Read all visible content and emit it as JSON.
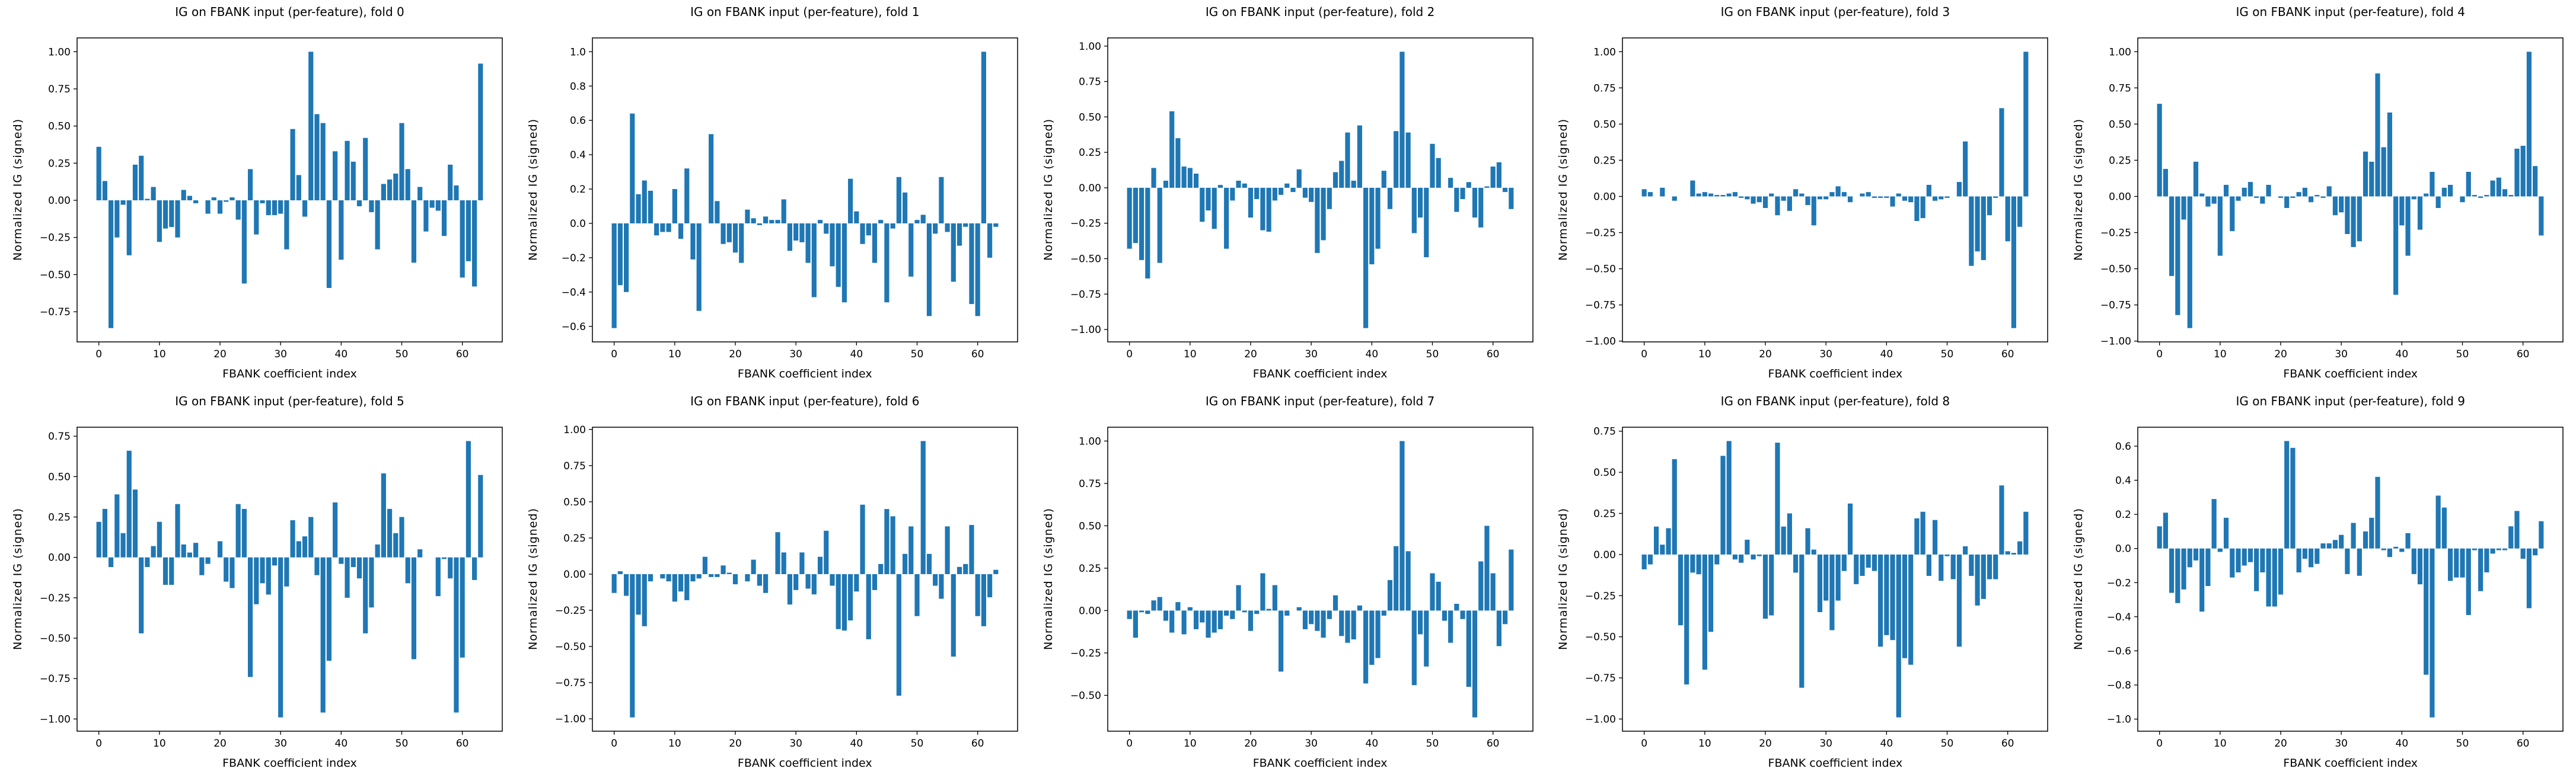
{
  "figure": {
    "bar_color": "#1f77b4",
    "spine_color": "#000000",
    "background_color": "#ffffff",
    "xticks": [
      0,
      10,
      20,
      30,
      40,
      50,
      60
    ]
  },
  "chart_data": [
    {
      "type": "bar",
      "title": "IG on FBANK input (per-feature), fold 0",
      "xlabel": "FBANK coefficient index",
      "ylabel": "Normalized IG (signed)",
      "x_start": 0,
      "yticks": [
        "1.00",
        "0.75",
        "0.50",
        "0.25",
        "0.00",
        "−0.25",
        "−0.50",
        "−0.75"
      ],
      "values": [
        0.36,
        0.13,
        -0.86,
        -0.25,
        -0.03,
        -0.37,
        0.24,
        0.3,
        0.01,
        0.09,
        -0.28,
        -0.19,
        -0.18,
        -0.25,
        0.07,
        0.03,
        -0.02,
        0.0,
        -0.09,
        0.02,
        -0.09,
        -0.01,
        0.02,
        -0.13,
        -0.56,
        0.21,
        -0.23,
        -0.02,
        -0.1,
        -0.1,
        -0.09,
        -0.33,
        0.48,
        0.17,
        -0.11,
        1.0,
        0.58,
        0.52,
        -0.59,
        0.33,
        -0.4,
        0.4,
        0.26,
        -0.04,
        0.42,
        -0.08,
        -0.33,
        0.11,
        0.14,
        0.18,
        0.52,
        0.21,
        -0.42,
        0.09,
        -0.21,
        -0.05,
        -0.07,
        -0.24,
        0.24,
        0.1,
        -0.52,
        -0.41,
        -0.58,
        0.92
      ]
    },
    {
      "type": "bar",
      "title": "IG on FBANK input (per-feature), fold 1",
      "xlabel": "FBANK coefficient index",
      "ylabel": "Normalized IG (signed)",
      "x_start": 0,
      "yticks": [
        "1.0",
        "0.8",
        "0.6",
        "0.4",
        "0.2",
        "0.0",
        "−0.2",
        "−0.4",
        "−0.6"
      ],
      "values": [
        -0.61,
        -0.36,
        -0.4,
        0.64,
        0.17,
        0.25,
        0.19,
        -0.07,
        -0.05,
        -0.05,
        0.2,
        -0.09,
        0.32,
        -0.21,
        -0.51,
        0.0,
        0.52,
        0.13,
        -0.12,
        -0.11,
        -0.17,
        -0.23,
        0.08,
        0.03,
        -0.01,
        0.04,
        0.02,
        0.02,
        0.14,
        -0.16,
        -0.1,
        -0.11,
        -0.23,
        -0.43,
        0.02,
        -0.06,
        -0.25,
        -0.37,
        -0.46,
        0.26,
        0.07,
        -0.12,
        -0.07,
        -0.23,
        0.02,
        -0.46,
        -0.03,
        0.27,
        0.18,
        -0.31,
        0.02,
        0.05,
        -0.54,
        -0.06,
        0.27,
        -0.05,
        -0.34,
        -0.13,
        -0.02,
        -0.47,
        -0.54,
        1.0,
        -0.2,
        -0.02
      ]
    },
    {
      "type": "bar",
      "title": "IG on FBANK input (per-feature), fold 2",
      "xlabel": "FBANK coefficient index",
      "ylabel": "Normalized IG (signed)",
      "x_start": 0,
      "yticks": [
        "1.00",
        "0.75",
        "0.50",
        "0.25",
        "0.00",
        "−0.25",
        "−0.50",
        "−0.75",
        "−1.00"
      ],
      "values": [
        -0.43,
        -0.39,
        -0.51,
        -0.64,
        0.14,
        -0.53,
        0.05,
        0.54,
        0.35,
        0.15,
        0.14,
        0.1,
        -0.24,
        -0.16,
        -0.29,
        0.02,
        -0.43,
        -0.09,
        0.05,
        0.03,
        -0.21,
        -0.08,
        -0.3,
        -0.31,
        -0.09,
        -0.05,
        0.03,
        -0.03,
        0.13,
        -0.07,
        -0.1,
        -0.46,
        -0.37,
        -0.15,
        0.11,
        0.19,
        0.39,
        0.05,
        0.44,
        -0.99,
        -0.54,
        -0.43,
        0.12,
        -0.15,
        0.4,
        0.96,
        0.39,
        -0.32,
        -0.21,
        -0.49,
        0.31,
        0.21,
        0.0,
        0.07,
        -0.17,
        -0.08,
        0.04,
        -0.21,
        -0.28,
        0.01,
        0.15,
        0.18,
        -0.03,
        -0.15
      ]
    },
    {
      "type": "bar",
      "title": "IG on FBANK input (per-feature), fold 3",
      "xlabel": "FBANK coefficient index",
      "ylabel": "Normalized IG (signed)",
      "x_start": 0,
      "yticks": [
        "1.00",
        "0.75",
        "0.50",
        "0.25",
        "0.00",
        "−0.25",
        "−0.50",
        "−0.75",
        "−1.00"
      ],
      "values": [
        0.05,
        0.03,
        0.0,
        0.06,
        0.0,
        -0.03,
        0.0,
        0.0,
        0.11,
        0.02,
        0.03,
        0.02,
        0.01,
        0.01,
        0.02,
        0.03,
        -0.01,
        -0.02,
        -0.05,
        -0.04,
        -0.08,
        0.02,
        -0.13,
        -0.03,
        -0.1,
        0.05,
        0.02,
        -0.06,
        -0.2,
        -0.02,
        -0.02,
        0.03,
        0.07,
        0.03,
        -0.04,
        0.0,
        0.02,
        0.03,
        -0.01,
        -0.01,
        -0.01,
        -0.07,
        0.02,
        -0.03,
        -0.04,
        -0.17,
        -0.15,
        0.08,
        -0.03,
        -0.02,
        -0.01,
        0.0,
        0.1,
        0.38,
        -0.48,
        -0.38,
        -0.44,
        -0.13,
        -0.01,
        0.61,
        -0.31,
        -0.91,
        -0.21,
        1.0
      ]
    },
    {
      "type": "bar",
      "title": "IG on FBANK input (per-feature), fold 4",
      "xlabel": "FBANK coefficient index",
      "ylabel": "Normalized IG (signed)",
      "x_start": 0,
      "yticks": [
        "1.00",
        "0.75",
        "0.50",
        "0.25",
        "0.00",
        "−0.25",
        "−0.50",
        "−0.75",
        "−1.00"
      ],
      "values": [
        0.64,
        0.19,
        -0.55,
        -0.82,
        -0.16,
        -0.91,
        0.24,
        0.02,
        -0.07,
        -0.05,
        -0.41,
        0.08,
        -0.24,
        -0.03,
        0.06,
        0.1,
        -0.01,
        -0.05,
        0.08,
        0.0,
        -0.01,
        -0.08,
        -0.01,
        0.03,
        0.06,
        -0.04,
        0.01,
        -0.01,
        0.07,
        -0.13,
        -0.11,
        -0.26,
        -0.35,
        -0.31,
        0.31,
        0.24,
        0.85,
        0.34,
        0.58,
        -0.68,
        -0.2,
        -0.41,
        -0.02,
        -0.23,
        0.02,
        0.17,
        -0.08,
        0.06,
        0.08,
        0.0,
        -0.04,
        0.17,
        0.01,
        -0.01,
        0.01,
        0.11,
        0.13,
        0.05,
        0.01,
        0.33,
        0.35,
        1.0,
        0.21,
        -0.27
      ]
    },
    {
      "type": "bar",
      "title": "IG on FBANK input (per-feature), fold 5",
      "xlabel": "FBANK coefficient index",
      "ylabel": "Normalized IG (signed)",
      "x_start": 0,
      "yticks": [
        "0.75",
        "0.50",
        "0.25",
        "0.00",
        "−0.25",
        "−0.50",
        "−0.75",
        "−1.00"
      ],
      "values": [
        0.22,
        0.3,
        -0.06,
        0.39,
        0.15,
        0.66,
        0.42,
        -0.47,
        -0.06,
        0.07,
        0.22,
        -0.17,
        -0.17,
        0.33,
        0.08,
        0.03,
        0.09,
        -0.11,
        -0.04,
        0.0,
        0.1,
        -0.15,
        -0.19,
        0.33,
        0.3,
        -0.74,
        -0.29,
        -0.16,
        -0.23,
        -0.05,
        -0.99,
        -0.18,
        0.23,
        0.1,
        0.13,
        0.25,
        -0.11,
        -0.96,
        -0.64,
        0.34,
        -0.04,
        -0.25,
        -0.06,
        -0.13,
        -0.47,
        -0.31,
        0.08,
        0.52,
        0.3,
        0.15,
        0.25,
        -0.16,
        -0.63,
        0.05,
        0.0,
        0.0,
        -0.24,
        -0.01,
        -0.13,
        -0.96,
        -0.62,
        0.72,
        -0.14,
        0.51
      ]
    },
    {
      "type": "bar",
      "title": "IG on FBANK input (per-feature), fold 6",
      "xlabel": "FBANK coefficient index",
      "ylabel": "Normalized IG (signed)",
      "x_start": 0,
      "yticks": [
        "1.00",
        "0.75",
        "0.50",
        "0.25",
        "0.00",
        "−0.25",
        "−0.50",
        "−0.75",
        "−1.00"
      ],
      "values": [
        -0.13,
        0.02,
        -0.15,
        -0.99,
        -0.28,
        -0.36,
        -0.05,
        0.0,
        -0.03,
        -0.05,
        -0.19,
        -0.12,
        -0.18,
        -0.05,
        -0.03,
        0.12,
        -0.02,
        -0.02,
        0.06,
        0.01,
        -0.07,
        0.0,
        -0.05,
        0.1,
        -0.08,
        -0.13,
        0.0,
        0.29,
        0.15,
        -0.21,
        -0.11,
        0.15,
        -0.1,
        -0.14,
        0.12,
        0.3,
        -0.08,
        -0.38,
        -0.39,
        -0.32,
        -0.12,
        0.48,
        -0.45,
        -0.11,
        0.07,
        0.45,
        0.4,
        -0.84,
        0.14,
        0.33,
        -0.29,
        0.92,
        0.14,
        -0.08,
        -0.17,
        0.33,
        -0.57,
        0.05,
        0.07,
        0.34,
        -0.29,
        -0.36,
        -0.16,
        0.03
      ]
    },
    {
      "type": "bar",
      "title": "IG on FBANK input (per-feature), fold 7",
      "xlabel": "FBANK coefficient index",
      "ylabel": "Normalized IG (signed)",
      "x_start": 0,
      "yticks": [
        "1.00",
        "0.75",
        "0.50",
        "0.25",
        "0.00",
        "−0.25",
        "−0.50"
      ],
      "values": [
        -0.05,
        -0.16,
        -0.01,
        -0.02,
        0.06,
        0.08,
        -0.06,
        -0.13,
        0.05,
        -0.14,
        0.02,
        -0.11,
        -0.07,
        -0.16,
        -0.13,
        -0.11,
        -0.03,
        -0.05,
        0.15,
        -0.01,
        -0.12,
        -0.02,
        0.22,
        0.01,
        0.15,
        -0.36,
        -0.03,
        0.0,
        0.02,
        -0.11,
        -0.08,
        -0.12,
        -0.16,
        -0.05,
        0.09,
        -0.15,
        -0.19,
        -0.17,
        0.03,
        -0.43,
        -0.32,
        -0.28,
        -0.03,
        0.18,
        0.38,
        1.0,
        0.35,
        -0.44,
        -0.14,
        -0.33,
        0.22,
        0.17,
        -0.06,
        -0.19,
        0.04,
        -0.05,
        -0.45,
        -0.63,
        0.29,
        0.5,
        0.22,
        -0.21,
        -0.08,
        0.36
      ]
    },
    {
      "type": "bar",
      "title": "IG on FBANK input (per-feature), fold 8",
      "xlabel": "FBANK coefficient index",
      "ylabel": "Normalized IG (signed)",
      "x_start": 0,
      "yticks": [
        "0.75",
        "0.50",
        "0.25",
        "0.00",
        "−0.25",
        "−0.50",
        "−0.75",
        "−1.00"
      ],
      "values": [
        -0.09,
        -0.06,
        0.17,
        0.06,
        0.16,
        0.58,
        -0.43,
        -0.79,
        -0.11,
        -0.12,
        -0.7,
        -0.47,
        -0.06,
        0.6,
        0.69,
        -0.03,
        -0.05,
        0.09,
        -0.03,
        -0.01,
        -0.39,
        -0.37,
        0.68,
        0.17,
        0.25,
        -0.11,
        -0.81,
        0.16,
        0.03,
        -0.35,
        -0.28,
        -0.46,
        -0.28,
        -0.1,
        0.31,
        -0.18,
        -0.13,
        -0.08,
        -0.1,
        -0.56,
        -0.49,
        -0.52,
        -0.99,
        -0.63,
        -0.67,
        0.22,
        0.26,
        -0.13,
        0.21,
        -0.16,
        -0.01,
        -0.15,
        -0.56,
        0.05,
        -0.13,
        -0.31,
        -0.27,
        -0.15,
        -0.15,
        0.42,
        0.02,
        0.01,
        0.08,
        0.26
      ]
    },
    {
      "type": "bar",
      "title": "IG on FBANK input (per-feature), fold 9",
      "xlabel": "FBANK coefficient index",
      "ylabel": "Normalized IG (signed)",
      "x_start": 0,
      "yticks": [
        "0.6",
        "0.4",
        "0.2",
        "0.0",
        "−0.2",
        "−0.4",
        "−0.6",
        "−0.8",
        "−1.0"
      ],
      "values": [
        0.13,
        0.21,
        -0.26,
        -0.32,
        -0.24,
        -0.11,
        -0.07,
        -0.37,
        -0.22,
        0.29,
        -0.02,
        0.18,
        -0.17,
        -0.14,
        -0.1,
        -0.08,
        -0.25,
        -0.14,
        -0.34,
        -0.34,
        -0.27,
        0.63,
        0.59,
        -0.14,
        -0.06,
        -0.11,
        -0.09,
        0.03,
        0.03,
        0.05,
        0.08,
        -0.15,
        0.15,
        -0.16,
        0.1,
        0.18,
        0.42,
        -0.01,
        -0.05,
        0.01,
        -0.02,
        0.09,
        -0.15,
        -0.21,
        -0.74,
        -0.99,
        0.31,
        0.24,
        -0.19,
        -0.17,
        -0.17,
        -0.39,
        -0.01,
        -0.25,
        -0.14,
        -0.03,
        -0.01,
        -0.01,
        0.13,
        0.22,
        -0.06,
        -0.35,
        -0.04,
        0.16
      ]
    }
  ]
}
